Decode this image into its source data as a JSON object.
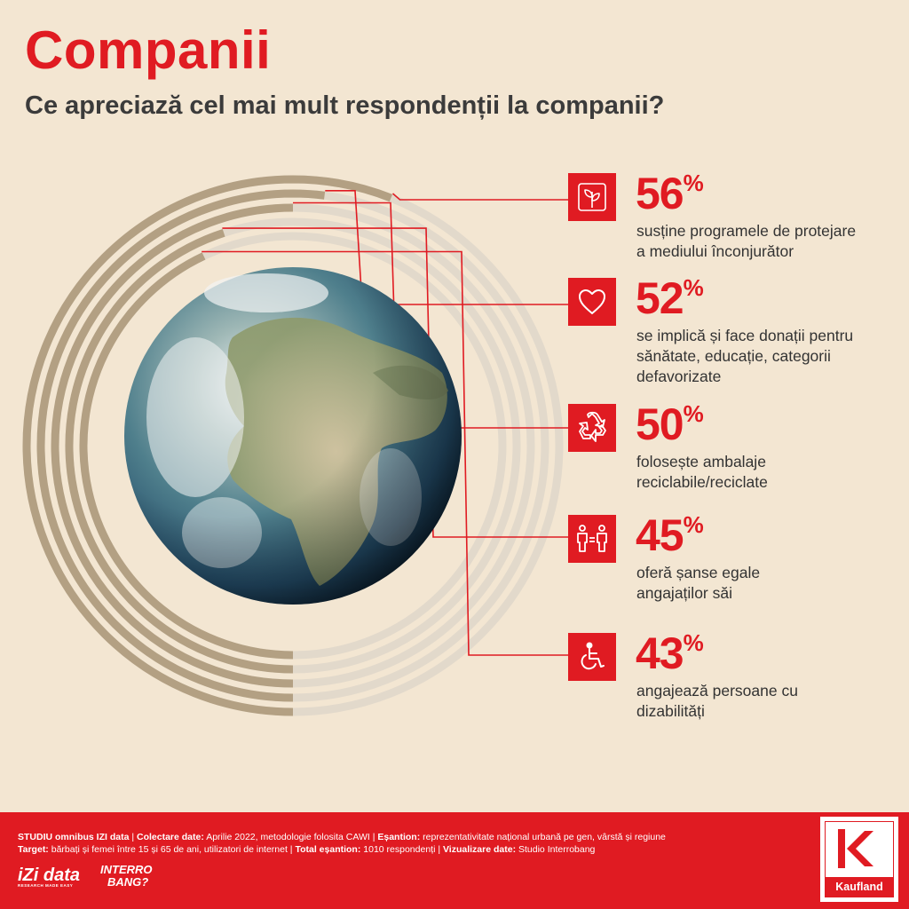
{
  "header": {
    "title": "Companii",
    "subtitle": "Ce apreciază cel mai mult respondenții la companii?"
  },
  "items": [
    {
      "value": "56",
      "unit": "%",
      "icon": "plant-hand-icon",
      "label_line1": "susține programele de protejare",
      "label_line2": "a mediului înconjurător",
      "label_line3": ""
    },
    {
      "value": "52",
      "unit": "%",
      "icon": "heart-icon",
      "label_line1": "se implică și face donații pentru",
      "label_line2": "sănătate, educație, categorii",
      "label_line3": "defavorizate"
    },
    {
      "value": "50",
      "unit": "%",
      "icon": "recycle-icon",
      "label_line1": "folosește ambalaje",
      "label_line2": "reciclabile/reciclate",
      "label_line3": ""
    },
    {
      "value": "45",
      "unit": "%",
      "icon": "equal-people-icon",
      "label_line1": "oferă șanse egale",
      "label_line2": "angajaților săi",
      "label_line3": ""
    },
    {
      "value": "43",
      "unit": "%",
      "icon": "wheelchair-icon",
      "label_line1": "angajează persoane cu",
      "label_line2": "dizabilități",
      "label_line3": ""
    }
  ],
  "chart_data": {
    "type": "radial-bar",
    "title": "Ce apreciază cel mai mult respondenții la companii?",
    "unit": "%",
    "categories": [
      "susține programele de protejare a mediului înconjurător",
      "se implică și face donații pentru sănătate, educație, categorii defavorizate",
      "folosește ambalaje reciclabile/reciclate",
      "oferă șanse egale angajaților săi",
      "angajează persoane cu dizabilități"
    ],
    "values": [
      56,
      52,
      50,
      45,
      43
    ],
    "max": 100
  },
  "footer": {
    "study_label": "STUDIU omnibus IZI data",
    "collection_label": "Colectare date:",
    "collection_value": "Aprilie 2022, metodologie folosita CAWI",
    "sample_label": "Eșantion:",
    "sample_value": "reprezentativitate național urbană pe gen, vârstă și regiune",
    "target_label": "Target:",
    "target_value": "bărbați și femei între 15 și 65 de ani, utilizatori de internet",
    "total_label": "Total eșantion:",
    "total_value": "1010 respondenți",
    "viz_label": "Vizualizare date:",
    "viz_value": "Studio Interrobang",
    "logo_izi": "iZi data",
    "logo_izi_tag": "RESEARCH MADE EASY",
    "logo_interro_line1": "INTERRO",
    "logo_interro_line2": "BANG?",
    "logo_kaufland": "Kaufland"
  },
  "colors": {
    "accent": "#e01b22",
    "background": "#f3e6d2",
    "ring_filled": "#b3a083",
    "ring_empty": "#e2d9cb"
  }
}
